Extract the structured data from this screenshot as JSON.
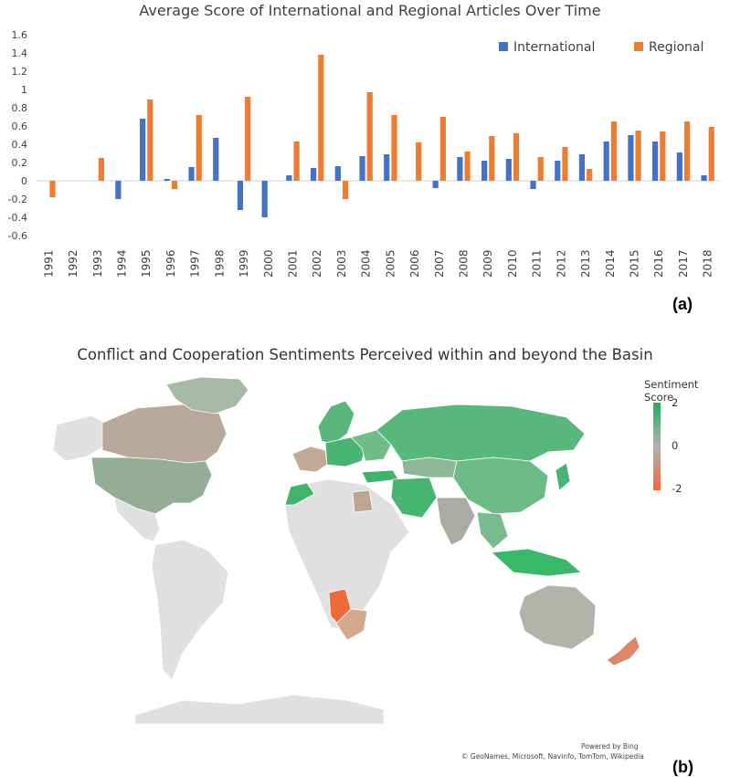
{
  "panel_a_label": "(a)",
  "panel_b_label": "(b)",
  "chart_data": [
    {
      "type": "bar",
      "title": "Average Score of International and Regional Articles Over Time",
      "xlabel": "",
      "ylabel": "",
      "ylim": [
        -0.6,
        1.6
      ],
      "yticks": [
        -0.6,
        -0.4,
        -0.2,
        0,
        0.2,
        0.4,
        0.6,
        0.8,
        1,
        1.2,
        1.4,
        1.6
      ],
      "ytick_labels": [
        "-0.6",
        "-0.4",
        "-0.2",
        "0",
        "0.2",
        "0.4",
        "0.6",
        "0.8",
        "1",
        "1.2",
        "1.4",
        "1.6"
      ],
      "grid": false,
      "legend": "top-right",
      "categories": [
        "1991",
        "1992",
        "1993",
        "1994",
        "1995",
        "1996",
        "1997",
        "1998",
        "1999",
        "2000",
        "2001",
        "2002",
        "2003",
        "2004",
        "2005",
        "2006",
        "2007",
        "2008",
        "2009",
        "2010",
        "2011",
        "2012",
        "2013",
        "2014",
        "2015",
        "2016",
        "2017",
        "2018"
      ],
      "series": [
        {
          "name": "International",
          "color": "#4472c4",
          "values": [
            0,
            0,
            0,
            -0.2,
            0.68,
            0.02,
            0.15,
            0.47,
            -0.32,
            -0.4,
            0.06,
            0.14,
            0.16,
            0.27,
            0.29,
            0,
            -0.08,
            0.26,
            0.22,
            0.24,
            -0.09,
            0.22,
            0.29,
            0.43,
            0.5,
            0.43,
            0.31,
            0.06
          ]
        },
        {
          "name": "Regional",
          "color": "#ed7d31",
          "values": [
            -0.18,
            0,
            0.25,
            0,
            0.89,
            -0.09,
            0.72,
            0,
            0.92,
            0,
            0.43,
            1.38,
            -0.2,
            0.97,
            0.72,
            0.42,
            0.7,
            0.32,
            0.49,
            0.52,
            0.26,
            0.37,
            0.13,
            0.65,
            0.55,
            0.54,
            0.65,
            0.59
          ]
        }
      ]
    },
    {
      "type": "heatmap",
      "title": "Conflict and Cooperation Sentiments Perceived within and beyond the Basin",
      "legend_title": "Sentiment Score",
      "scale": {
        "min": -2,
        "mid": 0,
        "max": 2,
        "labels": [
          "2",
          "0",
          "-2"
        ],
        "colors": {
          "max": "#20b05c",
          "mid": "#b2b2b2",
          "min": "#f26a3a",
          "no_data": "#e0e0e0"
        }
      },
      "regions": [
        {
          "region": "Canada",
          "color": "#b8a89a"
        },
        {
          "region": "United States",
          "color": "#94ae94"
        },
        {
          "region": "Greenland",
          "color": "#a6b8a6"
        },
        {
          "region": "Russia",
          "color": "#58b87c"
        },
        {
          "region": "China",
          "color": "#6cba86"
        },
        {
          "region": "India",
          "color": "#a8aca4"
        },
        {
          "region": "Australia",
          "color": "#b3b3ac"
        },
        {
          "region": "Namibia",
          "color": "#ee6a3a"
        },
        {
          "region": "South Africa",
          "color": "#d3a88e"
        },
        {
          "region": "New Zealand",
          "color": "#e08668"
        },
        {
          "region": "Indonesia",
          "color": "#38b868"
        },
        {
          "region": "Egypt",
          "color": "#bca690"
        },
        {
          "region": "Morocco",
          "color": "#40b46a"
        }
      ],
      "attribution_line1": "Powered by Bing",
      "attribution_line2": "© GeoNames, Microsoft, Navinfo, TomTom, Wikipedia"
    }
  ]
}
